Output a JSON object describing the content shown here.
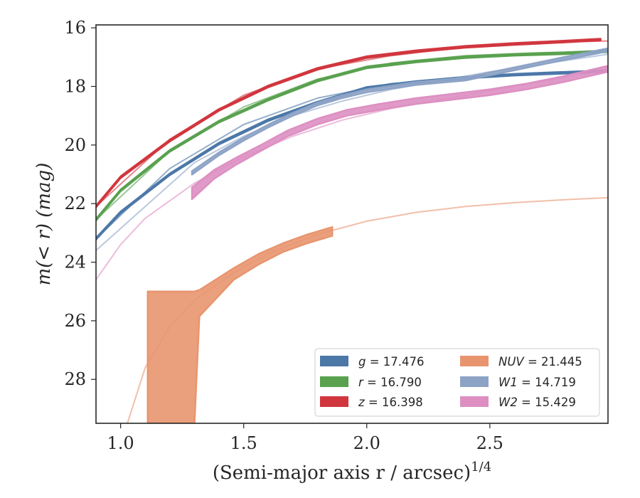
{
  "chart_data": {
    "type": "line",
    "xlabel": "(Semi-major axis r / arcsec)",
    "xlabel_superscript": "1/4",
    "ylabel": "m(< r) (mag)",
    "xlim": [
      0.9,
      2.98
    ],
    "ylim": [
      29.5,
      15.9
    ],
    "y_inverted": true,
    "grid": false,
    "legend_position": "lower-right",
    "x_ticks": [
      1.0,
      1.5,
      2.0,
      2.5
    ],
    "x_tick_labels": [
      "1.0",
      "1.5",
      "2.0",
      "2.5"
    ],
    "y_ticks": [
      16,
      18,
      20,
      22,
      24,
      26,
      28
    ],
    "y_tick_labels": [
      "16",
      "18",
      "20",
      "22",
      "24",
      "26",
      "28"
    ],
    "series": [
      {
        "name": "g = 17.476",
        "color": "#4c78a8",
        "model_x": [
          0.9,
          1.2,
          1.5,
          1.8,
          2.1,
          2.4,
          2.7,
          2.98
        ],
        "model_y": [
          23.2,
          20.8,
          19.3,
          18.4,
          17.9,
          17.7,
          17.55,
          17.5
        ],
        "data_x": [
          0.9,
          1.0,
          1.2,
          1.4,
          1.6,
          1.8,
          2.0,
          2.2,
          2.4,
          2.6,
          2.75,
          2.98
        ],
        "data_y": [
          23.2,
          22.3,
          21.0,
          19.95,
          19.15,
          18.55,
          18.05,
          17.85,
          17.7,
          17.6,
          17.55,
          17.48
        ],
        "data_err": [
          0.03,
          0.03,
          0.03,
          0.03,
          0.03,
          0.03,
          0.03,
          0.03,
          0.03,
          0.03,
          0.03,
          0.03
        ]
      },
      {
        "name": "r = 16.790",
        "color": "#59a14f",
        "model_x": [
          0.9,
          1.2,
          1.5,
          1.8,
          2.1,
          2.4,
          2.7,
          2.98
        ],
        "model_y": [
          22.55,
          20.2,
          18.7,
          17.75,
          17.2,
          16.95,
          16.85,
          16.79
        ],
        "data_x": [
          0.9,
          1.0,
          1.2,
          1.4,
          1.6,
          1.8,
          2.0,
          2.2,
          2.4,
          2.6,
          2.8,
          2.98
        ],
        "data_y": [
          22.55,
          21.55,
          20.2,
          19.2,
          18.45,
          17.8,
          17.35,
          17.15,
          17.0,
          16.92,
          16.87,
          16.8
        ],
        "data_err": [
          0.03,
          0.03,
          0.03,
          0.03,
          0.03,
          0.03,
          0.03,
          0.03,
          0.03,
          0.03,
          0.03,
          0.03
        ]
      },
      {
        "name": "z = 16.398",
        "color": "#d1363e",
        "model_x": [
          0.9,
          1.2,
          1.5,
          1.8,
          2.1,
          2.4,
          2.7,
          2.98
        ],
        "model_y": [
          22.1,
          19.8,
          18.3,
          17.4,
          16.95,
          16.65,
          16.5,
          16.45
        ],
        "data_x": [
          0.9,
          1.0,
          1.2,
          1.4,
          1.6,
          1.8,
          2.0,
          2.2,
          2.4,
          2.6,
          2.8,
          2.95
        ],
        "data_y": [
          22.1,
          21.1,
          19.85,
          18.8,
          18.0,
          17.4,
          17.0,
          16.8,
          16.65,
          16.55,
          16.47,
          16.4
        ],
        "data_err": [
          0.03,
          0.03,
          0.03,
          0.03,
          0.03,
          0.03,
          0.03,
          0.03,
          0.03,
          0.03,
          0.03,
          0.03
        ]
      },
      {
        "name": "NUV = 21.445",
        "color": "#e8956f",
        "model_x": [
          1.02,
          1.1,
          1.2,
          1.3,
          1.45,
          1.6,
          1.8,
          2.0,
          2.2,
          2.4,
          2.6,
          2.8,
          2.98
        ],
        "model_y": [
          29.7,
          27.6,
          26.2,
          25.3,
          24.4,
          23.7,
          23.05,
          22.6,
          22.3,
          22.1,
          21.97,
          21.87,
          21.8
        ],
        "data_x": [
          1.11,
          1.3,
          1.32,
          1.46,
          1.56,
          1.66,
          1.76,
          1.86
        ],
        "data_y": [
          27.25,
          27.25,
          25.4,
          24.4,
          23.9,
          23.5,
          23.2,
          22.95
        ],
        "data_err": [
          2.25,
          2.25,
          0.45,
          0.2,
          0.18,
          0.15,
          0.15,
          0.15
        ]
      },
      {
        "name": "W1 = 14.719",
        "color": "#8da3c6",
        "model_x": [
          0.9,
          1.1,
          1.3,
          1.5,
          1.7,
          1.9,
          2.1,
          2.3,
          2.5,
          2.7,
          2.98
        ],
        "model_y": [
          23.6,
          22.1,
          20.6,
          19.7,
          19.0,
          18.5,
          18.1,
          17.8,
          17.5,
          17.25,
          16.9
        ],
        "data_x": [
          1.29,
          1.4,
          1.5,
          1.6,
          1.7,
          1.8,
          1.9,
          2.0,
          2.2,
          2.4,
          2.6,
          2.8,
          2.98
        ],
        "data_y": [
          20.95,
          20.3,
          19.8,
          19.35,
          18.95,
          18.6,
          18.35,
          18.15,
          17.9,
          17.75,
          17.4,
          17.05,
          16.75
        ],
        "data_err": [
          0.06,
          0.05,
          0.05,
          0.05,
          0.05,
          0.05,
          0.05,
          0.05,
          0.05,
          0.05,
          0.05,
          0.05,
          0.05
        ]
      },
      {
        "name": "W2 = 15.429",
        "color": "#dd8fc2",
        "model_x": [
          0.9,
          1.0,
          1.1,
          1.3,
          1.5,
          1.7,
          1.9,
          2.1,
          2.3,
          2.5,
          2.7,
          2.98
        ],
        "model_y": [
          24.6,
          23.4,
          22.5,
          21.3,
          20.4,
          19.7,
          19.15,
          18.75,
          18.45,
          18.15,
          17.85,
          17.45
        ],
        "data_x": [
          1.29,
          1.38,
          1.47,
          1.57,
          1.68,
          1.8,
          1.92,
          2.05,
          2.2,
          2.35,
          2.5,
          2.65,
          2.8,
          2.98
        ],
        "data_y": [
          21.65,
          21.0,
          20.55,
          20.1,
          19.6,
          19.2,
          18.9,
          18.7,
          18.5,
          18.35,
          18.2,
          18.0,
          17.75,
          17.4
        ],
        "data_err": [
          0.2,
          0.15,
          0.12,
          0.1,
          0.1,
          0.1,
          0.1,
          0.1,
          0.1,
          0.1,
          0.1,
          0.1,
          0.1,
          0.1
        ]
      }
    ],
    "legend": {
      "columns": 2,
      "entries": [
        {
          "var": "g",
          "value": "17.476",
          "color": "#4c78a8"
        },
        {
          "var": "r",
          "value": "16.790",
          "color": "#59a14f"
        },
        {
          "var": "z",
          "value": "16.398",
          "color": "#d1363e"
        },
        {
          "var": "NUV",
          "value": "21.445",
          "color": "#e8956f"
        },
        {
          "var": "W1",
          "value": "14.719",
          "color": "#8da3c6"
        },
        {
          "var": "W2",
          "value": "15.429",
          "color": "#dd8fc2"
        }
      ]
    }
  }
}
